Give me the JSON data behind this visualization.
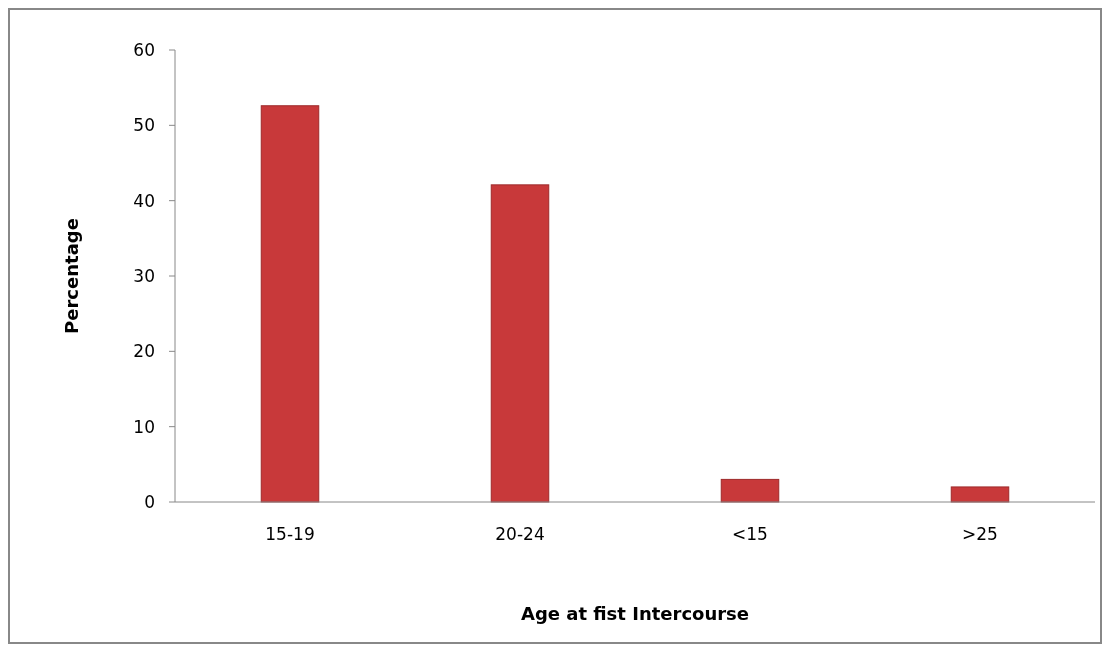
{
  "chart_data": {
    "type": "bar",
    "xlabel": "Age at fist Intercourse",
    "ylabel": "Percentage",
    "categories": [
      "15-19",
      "20-24",
      "<15",
      ">25"
    ],
    "values": [
      52.6,
      42.1,
      3,
      2
    ],
    "color": "#c8393a",
    "ylim": [
      0,
      60
    ],
    "yticks": [
      0,
      10,
      20,
      30,
      40,
      50,
      60
    ],
    "grid": false
  }
}
